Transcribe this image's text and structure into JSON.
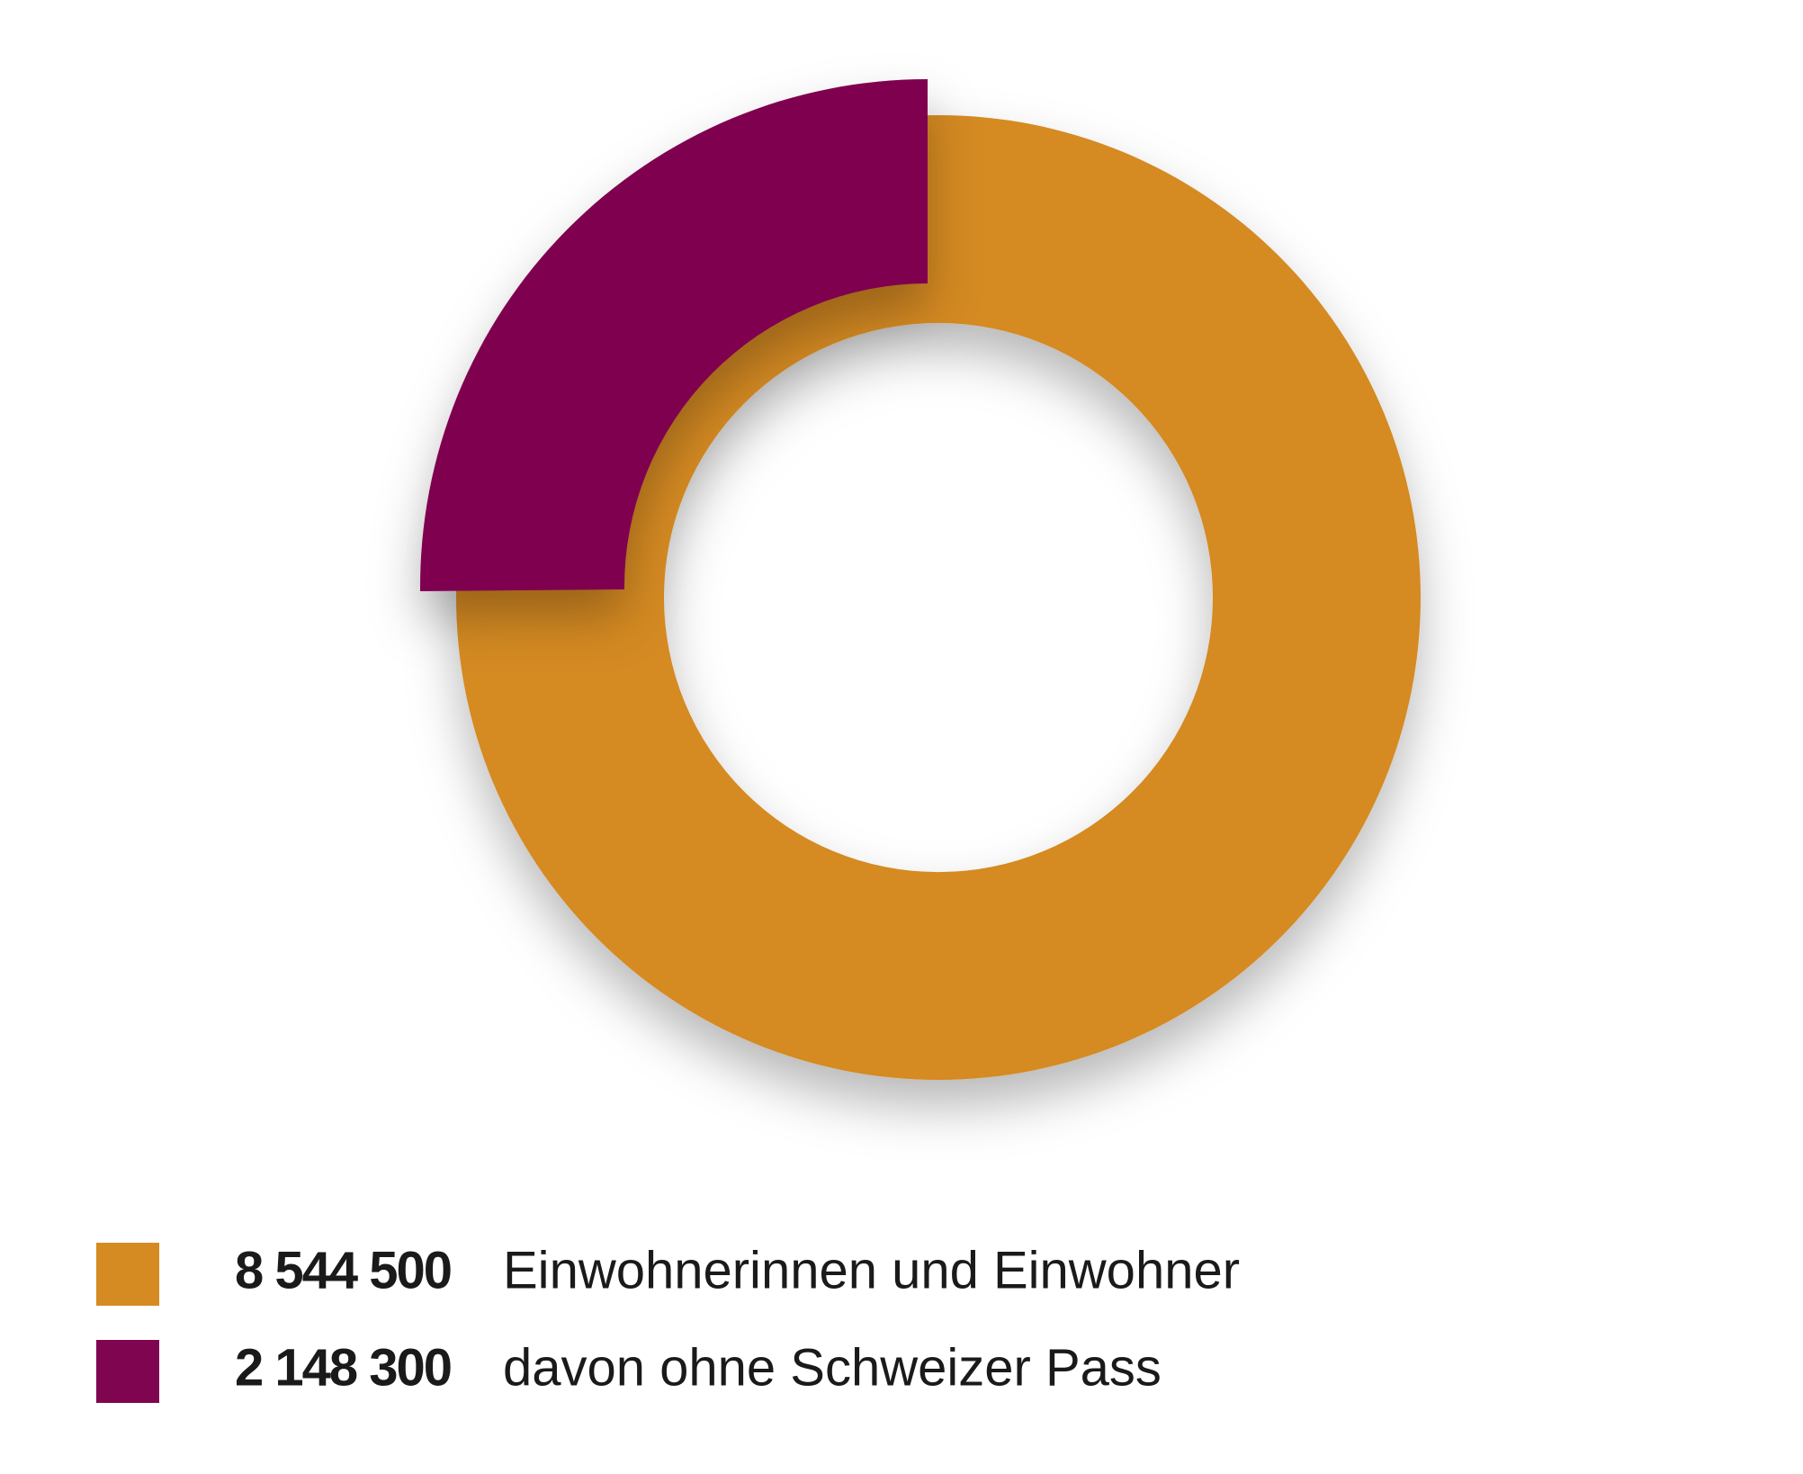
{
  "chart_data": {
    "type": "donut",
    "categories": [
      "Einwohnerinnen und Einwohner",
      "davon ohne Schweizer Pass"
    ],
    "values": [
      8544500,
      2148300
    ],
    "value_labels": [
      "8 544 500",
      "2 148 300"
    ],
    "colors": [
      "#d58a22",
      "#7f0550"
    ]
  }
}
